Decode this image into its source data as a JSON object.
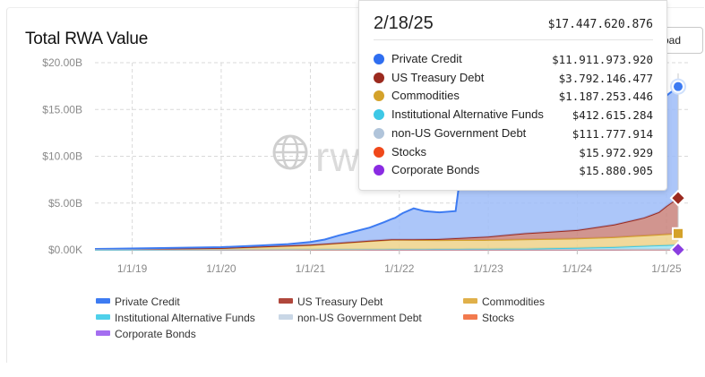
{
  "title": "Total RWA Value",
  "download_button": {
    "label": "oad"
  },
  "watermark": {
    "text": "rw"
  },
  "chart_data": {
    "type": "area",
    "stacked": true,
    "x_tick_labels": [
      "1/1/19",
      "1/1/20",
      "1/1/21",
      "1/1/22",
      "1/1/23",
      "1/1/24",
      "1/1/25"
    ],
    "x_range": [
      "2018-08-01",
      "2025-02-18"
    ],
    "y_tick_labels": [
      "$0.00K",
      "$5.00B",
      "$10.00B",
      "$15.00B",
      "$20.00B"
    ],
    "ylim": [
      0,
      20000000000
    ],
    "grid": true,
    "legend_position": "bottom",
    "series": [
      {
        "name": "Private Credit",
        "color": "#3d7bf2",
        "fill": "#9dbcf8",
        "points": [
          [
            "2018-08-01",
            0.05
          ],
          [
            "2019-06-01",
            0.06
          ],
          [
            "2020-06-01",
            0.1
          ],
          [
            "2020-10-01",
            0.15
          ],
          [
            "2021-01-01",
            0.3
          ],
          [
            "2021-03-01",
            0.45
          ],
          [
            "2021-05-01",
            0.8
          ],
          [
            "2021-07-01",
            1.1
          ],
          [
            "2021-09-01",
            1.4
          ],
          [
            "2021-11-01",
            1.9
          ],
          [
            "2021-12-15",
            2.3
          ],
          [
            "2022-01-15",
            2.8
          ],
          [
            "2022-03-01",
            3.3
          ],
          [
            "2022-04-15",
            3.0
          ],
          [
            "2022-06-15",
            2.85
          ],
          [
            "2022-08-20",
            2.9
          ],
          [
            "2022-09-01",
            5.3
          ],
          [
            "2022-10-15",
            5.4
          ],
          [
            "2022-12-15",
            5.6
          ],
          [
            "2023-03-01",
            6.5
          ],
          [
            "2023-06-01",
            7.6
          ],
          [
            "2023-09-01",
            8.6
          ],
          [
            "2023-12-01",
            9.4
          ],
          [
            "2024-03-01",
            10.1
          ],
          [
            "2024-06-01",
            10.5
          ],
          [
            "2024-09-01",
            10.9
          ],
          [
            "2024-11-01",
            11.3
          ],
          [
            "2024-12-01",
            11.6
          ],
          [
            "2025-01-01",
            11.8
          ],
          [
            "2025-02-18",
            11.912
          ]
        ]
      },
      {
        "name": "US Treasury Debt",
        "color": "#9b2a1f",
        "fill": "#c9837b",
        "points": [
          [
            "2018-08-01",
            0
          ],
          [
            "2022-01-01",
            0.05
          ],
          [
            "2022-06-01",
            0.1
          ],
          [
            "2023-01-01",
            0.35
          ],
          [
            "2023-06-01",
            0.65
          ],
          [
            "2024-01-01",
            0.9
          ],
          [
            "2024-06-01",
            1.35
          ],
          [
            "2024-10-01",
            1.9
          ],
          [
            "2024-12-01",
            2.4
          ],
          [
            "2025-01-01",
            3.0
          ],
          [
            "2025-02-18",
            3.792
          ]
        ]
      },
      {
        "name": "Commodities",
        "color": "#d4a22a",
        "fill": "#efd28a",
        "points": [
          [
            "2018-08-01",
            0.05
          ],
          [
            "2020-01-01",
            0.15
          ],
          [
            "2021-01-01",
            0.45
          ],
          [
            "2021-06-01",
            0.7
          ],
          [
            "2021-12-01",
            1.0
          ],
          [
            "2022-06-01",
            0.95
          ],
          [
            "2023-01-01",
            0.95
          ],
          [
            "2023-06-01",
            1.0
          ],
          [
            "2024-01-01",
            1.0
          ],
          [
            "2024-06-01",
            1.05
          ],
          [
            "2025-02-18",
            1.187
          ]
        ]
      },
      {
        "name": "Institutional Alternative Funds",
        "color": "#3ec8e6",
        "fill": "#a5e6f3",
        "points": [
          [
            "2018-08-01",
            0
          ],
          [
            "2023-06-01",
            0.05
          ],
          [
            "2024-06-01",
            0.2
          ],
          [
            "2025-02-18",
            0.413
          ]
        ]
      },
      {
        "name": "non-US Government Debt",
        "color": "#b7c8da",
        "fill": "#d9e3ee",
        "points": [
          [
            "2018-08-01",
            0
          ],
          [
            "2024-01-01",
            0.05
          ],
          [
            "2025-02-18",
            0.112
          ]
        ]
      },
      {
        "name": "Stocks",
        "color": "#f05a1f",
        "fill": "#f6a17f",
        "points": [
          [
            "2018-08-01",
            0
          ],
          [
            "2025-02-18",
            0.016
          ]
        ]
      },
      {
        "name": "Corporate Bonds",
        "color": "#8a3ee0",
        "fill": "#c39af0",
        "points": [
          [
            "2018-08-01",
            0
          ],
          [
            "2025-02-18",
            0.016
          ]
        ]
      }
    ],
    "y_unit_note": "values in billions USD"
  },
  "tooltip": {
    "date": "2/18/25",
    "total": "$17.447.620.876",
    "rows": [
      {
        "name": "Private Credit",
        "value": "$11.911.973.920",
        "color": "#2f6ef0"
      },
      {
        "name": "US Treasury Debt",
        "value": "$3.792.146.477",
        "color": "#9b2a1f"
      },
      {
        "name": "Commodities",
        "value": "$1.187.253.446",
        "color": "#d4a22a"
      },
      {
        "name": "Institutional Alternative Funds",
        "value": "$412.615.284",
        "color": "#3ec8e6"
      },
      {
        "name": "non-US Government Debt",
        "value": "$111.777.914",
        "color": "#b0c4da"
      },
      {
        "name": "Stocks",
        "value": "$15.972.929",
        "color": "#f0481a"
      },
      {
        "name": "Corporate Bonds",
        "value": "$15.880.905",
        "color": "#8a2be2"
      }
    ]
  },
  "legend": [
    {
      "label": "Private Credit",
      "color": "#3d7bf2"
    },
    {
      "label": "US Treasury Debt",
      "color": "#b0473c"
    },
    {
      "label": "Commodities",
      "color": "#e0b04a"
    },
    {
      "label": "Institutional Alternative Funds",
      "color": "#4fd0ea"
    },
    {
      "label": "non-US Government Debt",
      "color": "#c9d7e6"
    },
    {
      "label": "Stocks",
      "color": "#f27a4e"
    },
    {
      "label": "Corporate Bonds",
      "color": "#a46ef0"
    }
  ]
}
